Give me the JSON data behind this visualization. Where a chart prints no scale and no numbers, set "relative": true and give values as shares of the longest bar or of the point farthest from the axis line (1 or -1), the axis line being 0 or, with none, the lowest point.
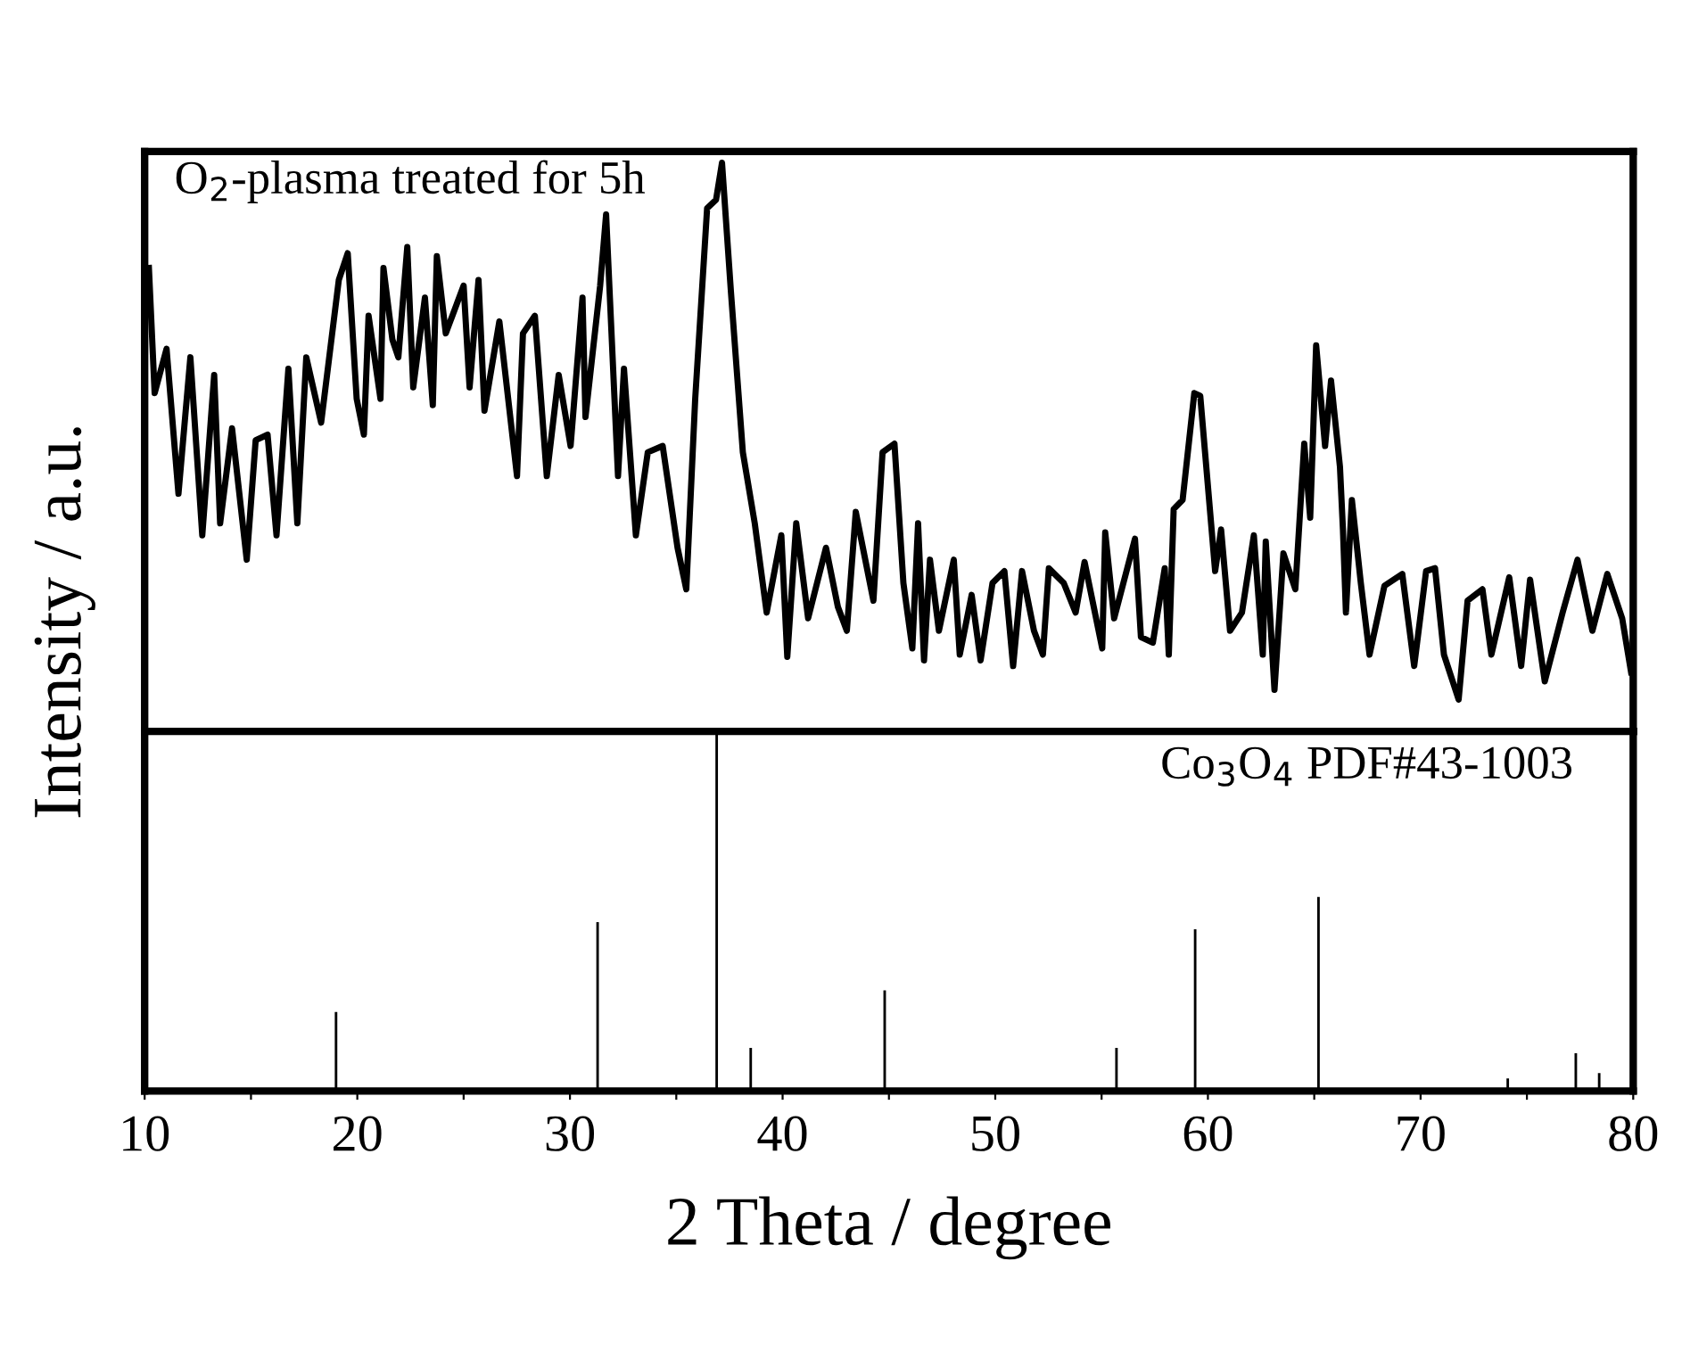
{
  "chart_data": [
    {
      "type": "line",
      "relative": true,
      "ylabel": "Intensity / a.u.",
      "xlim": [
        10,
        80
      ],
      "tick_labels": false,
      "line_style": "solid",
      "marker": "none",
      "annotations": [
        "O$_{2}$-plasma treated for 5h"
      ],
      "series": [
        {
          "color": "#000000",
          "x": [
            10.2,
            10.47,
            11.03,
            11.59,
            12.15,
            12.71,
            13.27,
            13.55,
            14.11,
            14.8,
            15.22,
            15.78,
            16.2,
            16.76,
            17.18,
            17.6,
            18.3,
            19.13,
            19.55,
            19.97,
            20.31,
            20.53,
            21.09,
            21.23,
            21.65,
            21.93,
            22.35,
            22.63,
            23.18,
            23.55,
            23.74,
            24.16,
            25.0,
            25.28,
            25.7,
            25.98,
            26.68,
            27.51,
            27.79,
            28.35,
            28.91,
            29.47,
            30.03,
            30.59,
            30.73,
            31.42,
            31.7,
            32.26,
            32.54,
            33.1,
            33.66,
            34.36,
            35.06,
            35.47,
            35.89,
            36.45,
            36.87,
            37.15,
            37.57,
            38.13,
            38.69,
            39.25,
            39.94,
            40.22,
            40.64,
            41.2,
            42.04,
            42.6,
            43.02,
            43.44,
            44.27,
            44.7,
            45.26,
            45.68,
            46.1,
            46.37,
            46.65,
            46.93,
            47.35,
            48.05,
            48.33,
            48.89,
            49.31,
            49.87,
            50.43,
            50.84,
            51.26,
            51.82,
            52.24,
            52.52,
            53.22,
            53.78,
            54.2,
            55.03,
            55.17,
            55.59,
            56.57,
            56.85,
            57.41,
            57.97,
            58.16,
            58.39,
            58.81,
            59.36,
            59.64,
            60.34,
            60.62,
            61.04,
            61.6,
            62.16,
            62.58,
            62.72,
            63.13,
            63.55,
            64.11,
            64.53,
            64.81,
            65.09,
            65.51,
            65.79,
            66.21,
            66.35,
            66.49,
            66.77,
            67.19,
            67.6,
            68.3,
            69.14,
            69.7,
            70.26,
            70.68,
            71.1,
            71.79,
            72.21,
            72.91,
            73.33,
            74.17,
            74.73,
            75.15,
            75.84,
            76.68,
            77.38,
            78.08,
            78.78,
            79.48,
            79.9
          ],
          "values": [
            0.815,
            0.595,
            0.673,
            0.418,
            0.658,
            0.345,
            0.627,
            0.366,
            0.533,
            0.302,
            0.512,
            0.522,
            0.345,
            0.638,
            0.366,
            0.658,
            0.543,
            0.794,
            0.841,
            0.585,
            0.522,
            0.731,
            0.585,
            0.815,
            0.689,
            0.658,
            0.852,
            0.605,
            0.763,
            0.574,
            0.836,
            0.7,
            0.784,
            0.605,
            0.794,
            0.564,
            0.721,
            0.449,
            0.7,
            0.731,
            0.449,
            0.627,
            0.502,
            0.763,
            0.553,
            0.784,
            0.909,
            0.449,
            0.638,
            0.345,
            0.491,
            0.502,
            0.323,
            0.25,
            0.585,
            0.92,
            0.935,
            1.0,
            0.773,
            0.491,
            0.366,
            0.209,
            0.345,
            0.131,
            0.366,
            0.199,
            0.323,
            0.219,
            0.177,
            0.386,
            0.23,
            0.491,
            0.506,
            0.261,
            0.146,
            0.366,
            0.125,
            0.302,
            0.177,
            0.302,
            0.135,
            0.24,
            0.125,
            0.261,
            0.282,
            0.115,
            0.282,
            0.177,
            0.135,
            0.287,
            0.261,
            0.209,
            0.298,
            0.146,
            0.35,
            0.199,
            0.339,
            0.166,
            0.156,
            0.287,
            0.135,
            0.391,
            0.407,
            0.595,
            0.59,
            0.282,
            0.355,
            0.177,
            0.209,
            0.345,
            0.135,
            0.334,
            0.073,
            0.313,
            0.25,
            0.506,
            0.376,
            0.679,
            0.502,
            0.617,
            0.465,
            0.355,
            0.209,
            0.407,
            0.261,
            0.135,
            0.256,
            0.277,
            0.115,
            0.282,
            0.287,
            0.135,
            0.056,
            0.23,
            0.25,
            0.135,
            0.271,
            0.115,
            0.267,
            0.088,
            0.209,
            0.302,
            0.177,
            0.277,
            0.199,
            0.104
          ]
        }
      ]
    },
    {
      "type": "bar",
      "relative": true,
      "xlabel": "2 Theta / degree",
      "xlim": [
        10,
        80
      ],
      "tick_labels": "x",
      "xticks": [
        10,
        {
          "value": 15,
          "label": null
        },
        20,
        {
          "value": 25,
          "label": null
        },
        30,
        {
          "value": 35,
          "label": null
        },
        40,
        {
          "value": 45,
          "label": null
        },
        50,
        {
          "value": 55,
          "label": null
        },
        60,
        {
          "value": 65,
          "label": null
        },
        70,
        {
          "value": 75,
          "label": null
        },
        80
      ],
      "annotations": [
        "Co$_{3}$O$_{4}$ PDF#43-1003"
      ],
      "x": [
        19.0,
        31.3,
        36.9,
        38.5,
        44.8,
        55.7,
        59.4,
        65.2,
        74.1,
        77.3,
        78.4
      ],
      "values": [
        0.22,
        0.47,
        1.0,
        0.12,
        0.28,
        0.12,
        0.45,
        0.54,
        0.035,
        0.105,
        0.05
      ],
      "color": "#000000"
    }
  ]
}
